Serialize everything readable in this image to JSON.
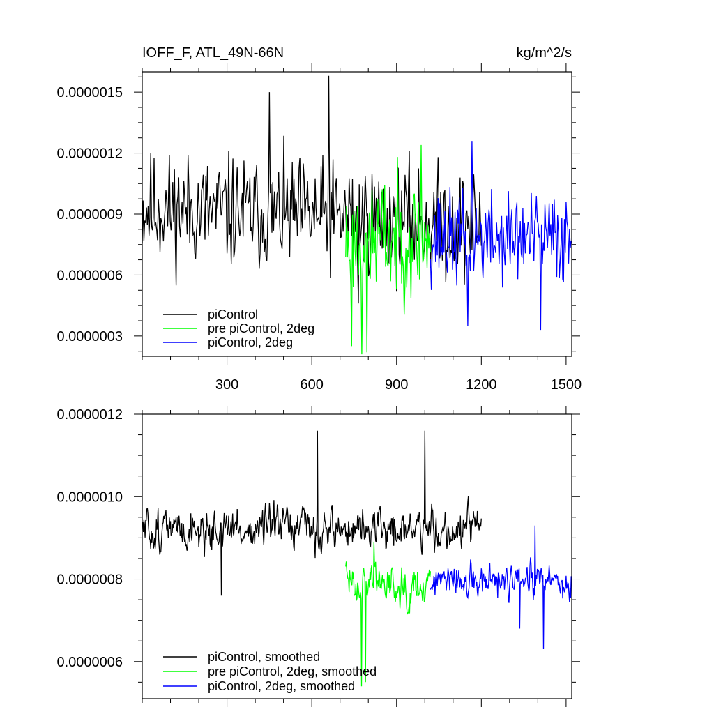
{
  "header": {
    "title_left": "IOFF_F, ATL_49N-66N",
    "title_right": "kg/m^2/s"
  },
  "colors": {
    "piControl": "#000000",
    "pre_piControl_2deg": "#00ff00",
    "piControl_2deg": "#0000ff"
  },
  "chart_data": [
    {
      "type": "line",
      "xlim": [
        0,
        1520
      ],
      "ylim": [
        2e-07,
        1.6e-06
      ],
      "x_ticks": [
        "300",
        "600",
        "900",
        "1200",
        "1500"
      ],
      "x_tick_values": [
        300,
        600,
        900,
        1200,
        1500
      ],
      "y_ticks": [
        "0.0000003",
        "0.0000006",
        "0.0000009",
        "0.0000012",
        "0.0000015"
      ],
      "y_tick_values": [
        3e-07,
        6e-07,
        9e-07,
        1.2e-06,
        1.5e-06
      ],
      "grid": false,
      "legend_position": "bottom-left",
      "series": [
        {
          "name": "piControl",
          "color": "#000000",
          "x_range": [
            0,
            1200
          ],
          "mean": 9.3e-07,
          "spread": 1.7e-07,
          "trend_end": 8.5e-07,
          "seed": 11,
          "spikes": [
            [
              660,
              1.58e-06
            ],
            [
              765,
              4.6e-07
            ],
            [
              450,
              1.5e-06
            ]
          ]
        },
        {
          "name": "pre piControl, 2deg",
          "color": "#00ff00",
          "x_range": [
            720,
            1020
          ],
          "mean": 7.8e-07,
          "spread": 1.8e-07,
          "trend_end": 7.8e-07,
          "seed": 23,
          "spikes": [
            [
              740,
              2.5e-07
            ],
            [
              775,
              2.1e-07
            ],
            [
              795,
              2.2e-07
            ],
            [
              985,
              1.24e-06
            ]
          ]
        },
        {
          "name": "piControl, 2deg",
          "color": "#0000ff",
          "x_range": [
            1020,
            1520
          ],
          "mean": 7.8e-07,
          "spread": 1.4e-07,
          "trend_end": 7.8e-07,
          "seed": 37,
          "spikes": [
            [
              1150,
              3.5e-07
            ],
            [
              1410,
              3.3e-07
            ],
            [
              1165,
              1.26e-06
            ]
          ]
        }
      ]
    },
    {
      "type": "line",
      "xlim": [
        0,
        1520
      ],
      "ylim": [
        5.1e-07,
        1.2e-06
      ],
      "x_tick_values": [
        300,
        600,
        900,
        1200,
        1500
      ],
      "y_ticks": [
        "0.0000006",
        "0.0000008",
        "0.0000010",
        "0.0000012"
      ],
      "y_tick_values": [
        6e-07,
        8e-07,
        1e-06,
        1.2e-06
      ],
      "grid": false,
      "legend_position": "bottom-left",
      "series": [
        {
          "name": "piControl, smoothed",
          "color": "#000000",
          "x_range": [
            0,
            1200
          ],
          "mean": 9.2e-07,
          "spread": 6e-08,
          "trend_end": 9.2e-07,
          "seed": 51,
          "spikes": [
            [
              620,
              1.16e-06
            ],
            [
              1000,
              1.16e-06
            ],
            [
              280,
              7.6e-07
            ]
          ]
        },
        {
          "name": "pre piControl, 2deg, smoothed",
          "color": "#00ff00",
          "x_range": [
            720,
            1020
          ],
          "mean": 8e-07,
          "spread": 6e-08,
          "trend_end": 7.9e-07,
          "seed": 63,
          "spikes": [
            [
              775,
              5.4e-07
            ],
            [
              790,
              5.5e-07
            ],
            [
              820,
              8.9e-07
            ]
          ]
        },
        {
          "name": "piControl, 2deg, smoothed",
          "color": "#0000ff",
          "x_range": [
            1020,
            1520
          ],
          "mean": 7.9e-07,
          "spread": 5e-08,
          "trend_end": 7.9e-07,
          "seed": 77,
          "spikes": [
            [
              1420,
              6.3e-07
            ],
            [
              1390,
              9.3e-07
            ],
            [
              1335,
              6.8e-07
            ]
          ]
        }
      ]
    }
  ]
}
